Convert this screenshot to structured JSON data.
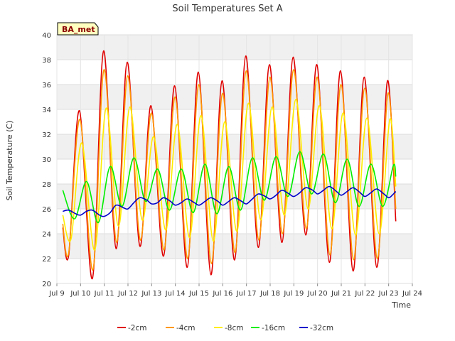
{
  "chart_data": {
    "type": "line",
    "title": "Soil Temperatures Set A",
    "xlabel": "Time",
    "ylabel": "Soil Temperature (C)",
    "badge": "BA_met",
    "x_range": [
      9.0,
      24.0
    ],
    "ylim": [
      20,
      40
    ],
    "y_ticks": [
      20,
      22,
      24,
      26,
      28,
      30,
      32,
      34,
      36,
      38,
      40
    ],
    "x_ticks": [
      {
        "x": 9,
        "label": "Jul 9"
      },
      {
        "x": 10,
        "label": "Jul 10"
      },
      {
        "x": 11,
        "label": "Jul 11"
      },
      {
        "x": 12,
        "label": "Jul 12"
      },
      {
        "x": 13,
        "label": "Jul 13"
      },
      {
        "x": 14,
        "label": "Jul 14"
      },
      {
        "x": 15,
        "label": "Jul 15"
      },
      {
        "x": 16,
        "label": "Jul 16"
      },
      {
        "x": 17,
        "label": "Jul 17"
      },
      {
        "x": 18,
        "label": "Jul 18"
      },
      {
        "x": 19,
        "label": "Jul 19"
      },
      {
        "x": 20,
        "label": "Jul 20"
      },
      {
        "x": 21,
        "label": "Jul 21"
      },
      {
        "x": 22,
        "label": "Jul 22"
      },
      {
        "x": 23,
        "label": "Jul 23"
      },
      {
        "x": 24,
        "label": "Jul 24"
      }
    ],
    "grid": true,
    "legend_position": "bottom",
    "series": [
      {
        "name": "-2cm",
        "color": "#e00000",
        "points": [
          [
            9.25,
            24.5
          ],
          [
            9.5,
            22.3
          ],
          [
            9.95,
            33.9
          ],
          [
            10.5,
            20.4
          ],
          [
            10.97,
            38.7
          ],
          [
            11.5,
            22.8
          ],
          [
            11.97,
            37.8
          ],
          [
            12.5,
            23.0
          ],
          [
            12.97,
            34.3
          ],
          [
            13.5,
            22.2
          ],
          [
            13.97,
            35.9
          ],
          [
            14.5,
            21.3
          ],
          [
            14.97,
            37.0
          ],
          [
            15.5,
            20.7
          ],
          [
            15.97,
            36.3
          ],
          [
            16.5,
            21.9
          ],
          [
            16.97,
            38.3
          ],
          [
            17.5,
            22.9
          ],
          [
            17.97,
            37.6
          ],
          [
            18.5,
            23.3
          ],
          [
            18.97,
            38.2
          ],
          [
            19.5,
            23.9
          ],
          [
            19.97,
            37.6
          ],
          [
            20.5,
            21.7
          ],
          [
            20.97,
            37.1
          ],
          [
            21.5,
            21.0
          ],
          [
            21.97,
            36.6
          ],
          [
            22.5,
            21.3
          ],
          [
            22.95,
            36.3
          ],
          [
            23.3,
            25.0
          ]
        ]
      },
      {
        "name": "-4cm",
        "color": "#ff9900",
        "points": [
          [
            9.25,
            24.8
          ],
          [
            9.5,
            22.5
          ],
          [
            9.97,
            33.2
          ],
          [
            10.52,
            21.1
          ],
          [
            10.99,
            37.2
          ],
          [
            11.52,
            23.3
          ],
          [
            11.99,
            36.7
          ],
          [
            12.52,
            23.5
          ],
          [
            12.99,
            33.7
          ],
          [
            13.52,
            22.7
          ],
          [
            13.99,
            35.0
          ],
          [
            14.52,
            22.0
          ],
          [
            14.99,
            36.0
          ],
          [
            15.52,
            21.6
          ],
          [
            15.99,
            35.3
          ],
          [
            16.52,
            22.5
          ],
          [
            16.99,
            37.1
          ],
          [
            17.52,
            23.5
          ],
          [
            17.99,
            36.6
          ],
          [
            18.52,
            24.0
          ],
          [
            18.99,
            37.2
          ],
          [
            19.52,
            24.4
          ],
          [
            19.99,
            36.6
          ],
          [
            20.52,
            22.3
          ],
          [
            20.99,
            36.0
          ],
          [
            21.52,
            21.9
          ],
          [
            21.99,
            35.7
          ],
          [
            22.52,
            22.0
          ],
          [
            22.97,
            35.3
          ],
          [
            23.3,
            26.0
          ]
        ]
      },
      {
        "name": "-8cm",
        "color": "#ffee00",
        "points": [
          [
            9.25,
            25.5
          ],
          [
            9.6,
            23.6
          ],
          [
            10.05,
            31.3
          ],
          [
            10.6,
            22.7
          ],
          [
            11.08,
            34.1
          ],
          [
            11.6,
            24.6
          ],
          [
            12.08,
            34.2
          ],
          [
            12.6,
            25.1
          ],
          [
            13.08,
            31.8
          ],
          [
            13.6,
            24.3
          ],
          [
            14.08,
            32.8
          ],
          [
            14.6,
            23.7
          ],
          [
            15.08,
            33.5
          ],
          [
            15.6,
            23.4
          ],
          [
            16.08,
            33.0
          ],
          [
            16.6,
            24.2
          ],
          [
            17.08,
            34.5
          ],
          [
            17.6,
            25.1
          ],
          [
            18.08,
            34.2
          ],
          [
            18.6,
            25.5
          ],
          [
            19.08,
            34.8
          ],
          [
            19.6,
            26.0
          ],
          [
            20.08,
            34.3
          ],
          [
            20.6,
            24.4
          ],
          [
            21.08,
            33.7
          ],
          [
            21.6,
            23.9
          ],
          [
            22.08,
            33.3
          ],
          [
            22.6,
            24.0
          ],
          [
            23.05,
            33.2
          ],
          [
            23.3,
            27.8
          ]
        ]
      },
      {
        "name": "-16cm",
        "color": "#00ee00",
        "points": [
          [
            9.25,
            27.5
          ],
          [
            9.75,
            25.2
          ],
          [
            10.25,
            28.2
          ],
          [
            10.75,
            24.9
          ],
          [
            11.25,
            29.4
          ],
          [
            11.75,
            26.2
          ],
          [
            12.25,
            30.1
          ],
          [
            12.75,
            26.6
          ],
          [
            13.25,
            29.2
          ],
          [
            13.75,
            25.9
          ],
          [
            14.25,
            29.2
          ],
          [
            14.75,
            25.7
          ],
          [
            15.25,
            29.6
          ],
          [
            15.75,
            25.6
          ],
          [
            16.25,
            29.4
          ],
          [
            16.75,
            25.9
          ],
          [
            17.25,
            30.1
          ],
          [
            17.75,
            26.7
          ],
          [
            18.25,
            30.2
          ],
          [
            18.75,
            27.0
          ],
          [
            19.25,
            30.6
          ],
          [
            19.75,
            27.2
          ],
          [
            20.25,
            30.4
          ],
          [
            20.75,
            26.5
          ],
          [
            21.25,
            30.0
          ],
          [
            21.75,
            26.2
          ],
          [
            22.25,
            29.6
          ],
          [
            22.75,
            26.2
          ],
          [
            23.2,
            29.5
          ],
          [
            23.3,
            28.6
          ]
        ]
      },
      {
        "name": "-32cm",
        "color": "#0000cc",
        "points": [
          [
            9.25,
            25.8
          ],
          [
            9.5,
            25.9
          ],
          [
            9.8,
            25.6
          ],
          [
            10.0,
            25.5
          ],
          [
            10.25,
            25.8
          ],
          [
            10.5,
            25.9
          ],
          [
            10.8,
            25.5
          ],
          [
            11.0,
            25.4
          ],
          [
            11.25,
            25.7
          ],
          [
            11.5,
            26.3
          ],
          [
            11.8,
            26.1
          ],
          [
            12.0,
            26.0
          ],
          [
            12.25,
            26.5
          ],
          [
            12.5,
            26.9
          ],
          [
            12.8,
            26.7
          ],
          [
            13.0,
            26.4
          ],
          [
            13.25,
            26.5
          ],
          [
            13.5,
            26.9
          ],
          [
            13.8,
            26.6
          ],
          [
            14.0,
            26.3
          ],
          [
            14.25,
            26.5
          ],
          [
            14.5,
            26.8
          ],
          [
            14.8,
            26.5
          ],
          [
            15.0,
            26.3
          ],
          [
            15.25,
            26.6
          ],
          [
            15.5,
            26.9
          ],
          [
            15.8,
            26.6
          ],
          [
            16.0,
            26.3
          ],
          [
            16.25,
            26.6
          ],
          [
            16.5,
            26.9
          ],
          [
            16.8,
            26.6
          ],
          [
            17.0,
            26.4
          ],
          [
            17.25,
            26.8
          ],
          [
            17.5,
            27.2
          ],
          [
            17.8,
            27.0
          ],
          [
            18.0,
            26.8
          ],
          [
            18.25,
            27.1
          ],
          [
            18.5,
            27.5
          ],
          [
            18.8,
            27.2
          ],
          [
            19.0,
            27.0
          ],
          [
            19.25,
            27.3
          ],
          [
            19.5,
            27.7
          ],
          [
            19.8,
            27.5
          ],
          [
            20.0,
            27.2
          ],
          [
            20.25,
            27.5
          ],
          [
            20.5,
            27.8
          ],
          [
            20.8,
            27.4
          ],
          [
            21.0,
            27.1
          ],
          [
            21.25,
            27.4
          ],
          [
            21.5,
            27.7
          ],
          [
            21.8,
            27.3
          ],
          [
            22.0,
            27.0
          ],
          [
            22.25,
            27.3
          ],
          [
            22.5,
            27.6
          ],
          [
            22.8,
            27.2
          ],
          [
            23.0,
            26.9
          ],
          [
            23.15,
            27.1
          ],
          [
            23.3,
            27.4
          ]
        ]
      }
    ]
  }
}
